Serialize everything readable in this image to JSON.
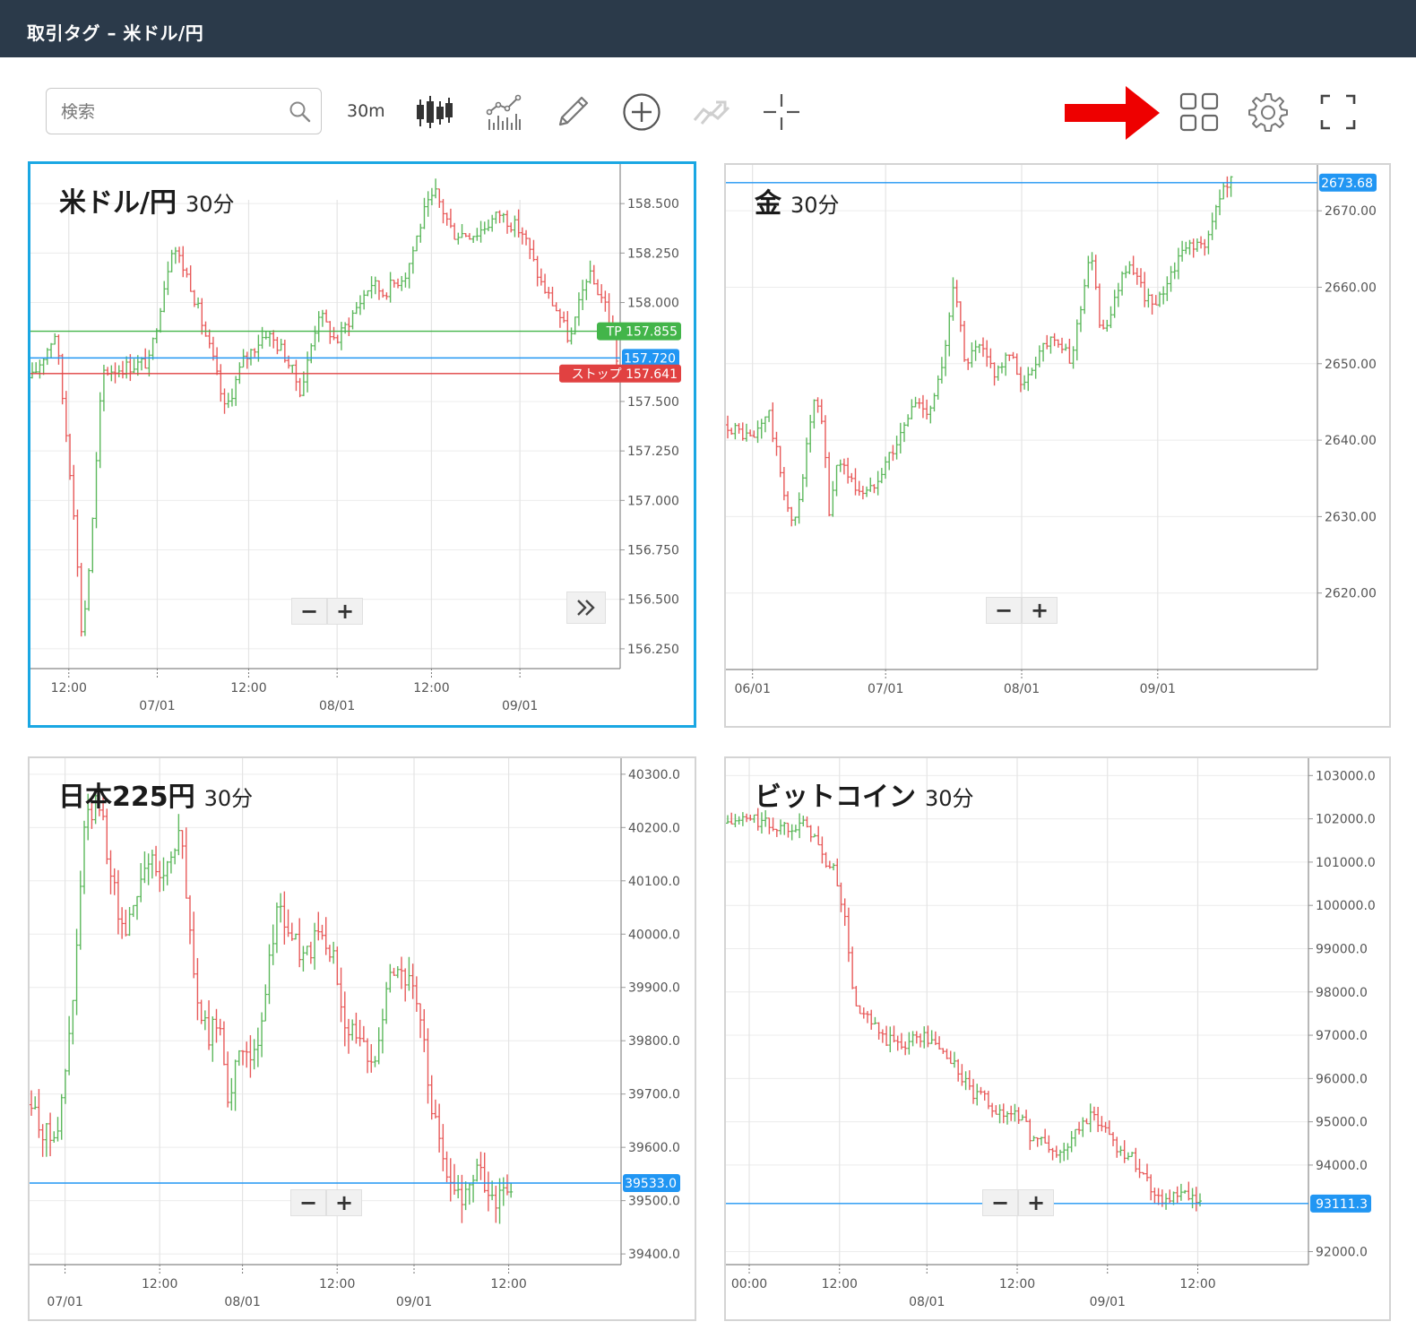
{
  "window": {
    "title": "取引タグ – 米ドル/円"
  },
  "toolbar": {
    "search_placeholder": "検索",
    "timeframe": "30m",
    "icons": [
      "candlestick-icon",
      "indicator-icon",
      "pencil-icon",
      "add-circle-icon",
      "compare-icon",
      "crosshair-icon",
      "layout-grid-icon",
      "gear-icon",
      "fullscreen-icon"
    ]
  },
  "annotation": {
    "arrow_color": "#ee0000"
  },
  "colors": {
    "up": "#5cb85c",
    "down": "#e85a5a",
    "price_line": "#2196f3",
    "tp": "#43b54a",
    "stop": "#e14141",
    "active_border": "#1aa7e3"
  },
  "charts": [
    {
      "name": "米ドル/円",
      "timeframe": "30分",
      "y_range": [
        156.15,
        158.7
      ],
      "y_ticks": [
        "158.500",
        "158.250",
        "158.000",
        "157.500",
        "157.250",
        "157.000",
        "156.750",
        "156.500",
        "156.250"
      ],
      "x_ticks": [
        {
          "top": "12:00",
          "bottom": ""
        },
        {
          "top": "",
          "bottom": "07/01"
        },
        {
          "top": "12:00",
          "bottom": ""
        },
        {
          "top": "",
          "bottom": "08/01"
        },
        {
          "top": "12:00",
          "bottom": ""
        },
        {
          "top": "",
          "bottom": "09/01"
        }
      ],
      "markers": [
        {
          "label": "TP  157.855",
          "value": 157.855,
          "kind": "tp"
        },
        {
          "label": "157.720",
          "value": 157.72,
          "kind": "price"
        },
        {
          "label": "ストップ  157.641",
          "value": 157.641,
          "kind": "stop"
        }
      ],
      "path": [
        [
          0,
          157.62
        ],
        [
          0.04,
          157.85
        ],
        [
          0.07,
          157.0
        ],
        [
          0.085,
          156.3
        ],
        [
          0.1,
          156.75
        ],
        [
          0.12,
          157.65
        ],
        [
          0.2,
          157.7
        ],
        [
          0.22,
          158.0
        ],
        [
          0.24,
          158.3
        ],
        [
          0.27,
          158.1
        ],
        [
          0.29,
          157.9
        ],
        [
          0.31,
          157.7
        ],
        [
          0.33,
          157.45
        ],
        [
          0.36,
          157.7
        ],
        [
          0.4,
          157.85
        ],
        [
          0.43,
          157.75
        ],
        [
          0.46,
          157.55
        ],
        [
          0.49,
          157.95
        ],
        [
          0.52,
          157.8
        ],
        [
          0.55,
          157.95
        ],
        [
          0.58,
          158.1
        ],
        [
          0.6,
          158.05
        ],
        [
          0.64,
          158.15
        ],
        [
          0.67,
          158.45
        ],
        [
          0.69,
          158.55
        ],
        [
          0.72,
          158.35
        ],
        [
          0.76,
          158.35
        ],
        [
          0.8,
          158.45
        ],
        [
          0.84,
          158.35
        ],
        [
          0.87,
          158.1
        ],
        [
          0.9,
          157.95
        ],
        [
          0.92,
          157.8
        ],
        [
          0.95,
          158.15
        ],
        [
          0.98,
          158.0
        ],
        [
          1.0,
          157.72
        ]
      ],
      "vol": 0.06,
      "label_decimals": 3
    },
    {
      "name": "金",
      "timeframe": "30分",
      "y_range": [
        2610,
        2676
      ],
      "y_ticks": [
        "2670.00",
        "2660.00",
        "2650.00",
        "2640.00",
        "2630.00",
        "2620.00"
      ],
      "x_ticks": [
        {
          "top": "",
          "bottom": "06/01"
        },
        {
          "top": "",
          "bottom": "07/01"
        },
        {
          "top": "",
          "bottom": "08/01"
        },
        {
          "top": "",
          "bottom": "09/01"
        }
      ],
      "markers": [
        {
          "label": "2673.68",
          "value": 2673.68,
          "kind": "price"
        }
      ],
      "path": [
        [
          0,
          2642
        ],
        [
          0.05,
          2640
        ],
        [
          0.08,
          2644
        ],
        [
          0.11,
          2634
        ],
        [
          0.13,
          2628
        ],
        [
          0.15,
          2636
        ],
        [
          0.17,
          2645
        ],
        [
          0.19,
          2642
        ],
        [
          0.2,
          2630
        ],
        [
          0.22,
          2638
        ],
        [
          0.25,
          2634
        ],
        [
          0.28,
          2633
        ],
        [
          0.31,
          2637
        ],
        [
          0.34,
          2640
        ],
        [
          0.37,
          2645
        ],
        [
          0.4,
          2644
        ],
        [
          0.43,
          2650
        ],
        [
          0.45,
          2662
        ],
        [
          0.47,
          2650
        ],
        [
          0.5,
          2652
        ],
        [
          0.53,
          2649
        ],
        [
          0.56,
          2651
        ],
        [
          0.59,
          2647
        ],
        [
          0.62,
          2652
        ],
        [
          0.65,
          2654
        ],
        [
          0.68,
          2650
        ],
        [
          0.7,
          2657
        ],
        [
          0.72,
          2665
        ],
        [
          0.74,
          2655
        ],
        [
          0.76,
          2656
        ],
        [
          0.79,
          2663
        ],
        [
          0.82,
          2660
        ],
        [
          0.85,
          2657
        ],
        [
          0.88,
          2662
        ],
        [
          0.92,
          2666
        ],
        [
          0.95,
          2665
        ],
        [
          0.98,
          2673
        ],
        [
          1.0,
          2673.7
        ]
      ],
      "vol": 1.6,
      "label_decimals": 2
    },
    {
      "name": "日本225円",
      "timeframe": "30分",
      "y_range": [
        39380,
        40330
      ],
      "y_ticks": [
        "40300.0",
        "40200.0",
        "40100.0",
        "40000.0",
        "39900.0",
        "39800.0",
        "39700.0",
        "39600.0",
        "39500.0",
        "39400.0"
      ],
      "x_ticks": [
        {
          "top": "",
          "bottom": "07/01"
        },
        {
          "top": "12:00",
          "bottom": ""
        },
        {
          "top": "",
          "bottom": "08/01"
        },
        {
          "top": "12:00",
          "bottom": ""
        },
        {
          "top": "",
          "bottom": "09/01"
        },
        {
          "top": "12:00",
          "bottom": ""
        }
      ],
      "markers": [
        {
          "label": "39533.0",
          "value": 39533.0,
          "kind": "price"
        }
      ],
      "path": [
        [
          0,
          39680
        ],
        [
          0.03,
          39620
        ],
        [
          0.06,
          39650
        ],
        [
          0.09,
          39900
        ],
        [
          0.11,
          40200
        ],
        [
          0.14,
          40250
        ],
        [
          0.17,
          40100
        ],
        [
          0.19,
          40000
        ],
        [
          0.21,
          40050
        ],
        [
          0.24,
          40150
        ],
        [
          0.27,
          40100
        ],
        [
          0.29,
          40150
        ],
        [
          0.31,
          40200
        ],
        [
          0.33,
          40000
        ],
        [
          0.35,
          39850
        ],
        [
          0.37,
          39800
        ],
        [
          0.39,
          39850
        ],
        [
          0.41,
          39700
        ],
        [
          0.43,
          39750
        ],
        [
          0.45,
          39800
        ],
        [
          0.47,
          39750
        ],
        [
          0.49,
          39900
        ],
        [
          0.51,
          40050
        ],
        [
          0.54,
          40000
        ],
        [
          0.57,
          39950
        ],
        [
          0.6,
          40000
        ],
        [
          0.63,
          39950
        ],
        [
          0.65,
          39850
        ],
        [
          0.68,
          39800
        ],
        [
          0.71,
          39750
        ],
        [
          0.74,
          39900
        ],
        [
          0.76,
          39950
        ],
        [
          0.79,
          39900
        ],
        [
          0.81,
          39850
        ],
        [
          0.83,
          39700
        ],
        [
          0.85,
          39600
        ],
        [
          0.87,
          39550
        ],
        [
          0.89,
          39500
        ],
        [
          0.91,
          39530
        ],
        [
          0.93,
          39560
        ],
        [
          0.95,
          39520
        ],
        [
          0.97,
          39500
        ],
        [
          1.0,
          39533
        ]
      ],
      "vol": 40,
      "label_decimals": 1
    },
    {
      "name": "ビットコイン",
      "timeframe": "30分",
      "y_range": [
        91700,
        103400
      ],
      "y_ticks": [
        "103000.0",
        "102000.0",
        "101000.0",
        "100000.0",
        "99000.0",
        "98000.0",
        "97000.0",
        "96000.0",
        "95000.0",
        "94000.0",
        "92000.0"
      ],
      "x_ticks": [
        {
          "top": "00:00",
          "bottom": ""
        },
        {
          "top": "12:00",
          "bottom": ""
        },
        {
          "top": "",
          "bottom": "08/01"
        },
        {
          "top": "12:00",
          "bottom": ""
        },
        {
          "top": "",
          "bottom": "09/01"
        },
        {
          "top": "12:00",
          "bottom": ""
        }
      ],
      "markers": [
        {
          "label": "93111.3",
          "value": 93111.3,
          "kind": "price"
        }
      ],
      "path": [
        [
          0,
          101900
        ],
        [
          0.05,
          102000
        ],
        [
          0.1,
          101800
        ],
        [
          0.15,
          101900
        ],
        [
          0.18,
          101700
        ],
        [
          0.2,
          101100
        ],
        [
          0.23,
          100700
        ],
        [
          0.25,
          99500
        ],
        [
          0.27,
          97600
        ],
        [
          0.3,
          97300
        ],
        [
          0.33,
          96900
        ],
        [
          0.37,
          96800
        ],
        [
          0.41,
          97000
        ],
        [
          0.45,
          96700
        ],
        [
          0.48,
          96300
        ],
        [
          0.52,
          95600
        ],
        [
          0.55,
          95500
        ],
        [
          0.58,
          95100
        ],
        [
          0.61,
          95300
        ],
        [
          0.64,
          94700
        ],
        [
          0.67,
          94500
        ],
        [
          0.7,
          94200
        ],
        [
          0.73,
          94600
        ],
        [
          0.76,
          95100
        ],
        [
          0.79,
          95000
        ],
        [
          0.82,
          94500
        ],
        [
          0.85,
          94200
        ],
        [
          0.87,
          94000
        ],
        [
          0.9,
          93400
        ],
        [
          0.93,
          93200
        ],
        [
          0.96,
          93300
        ],
        [
          1.0,
          93111
        ]
      ],
      "vol": 260,
      "label_decimals": 1
    }
  ]
}
